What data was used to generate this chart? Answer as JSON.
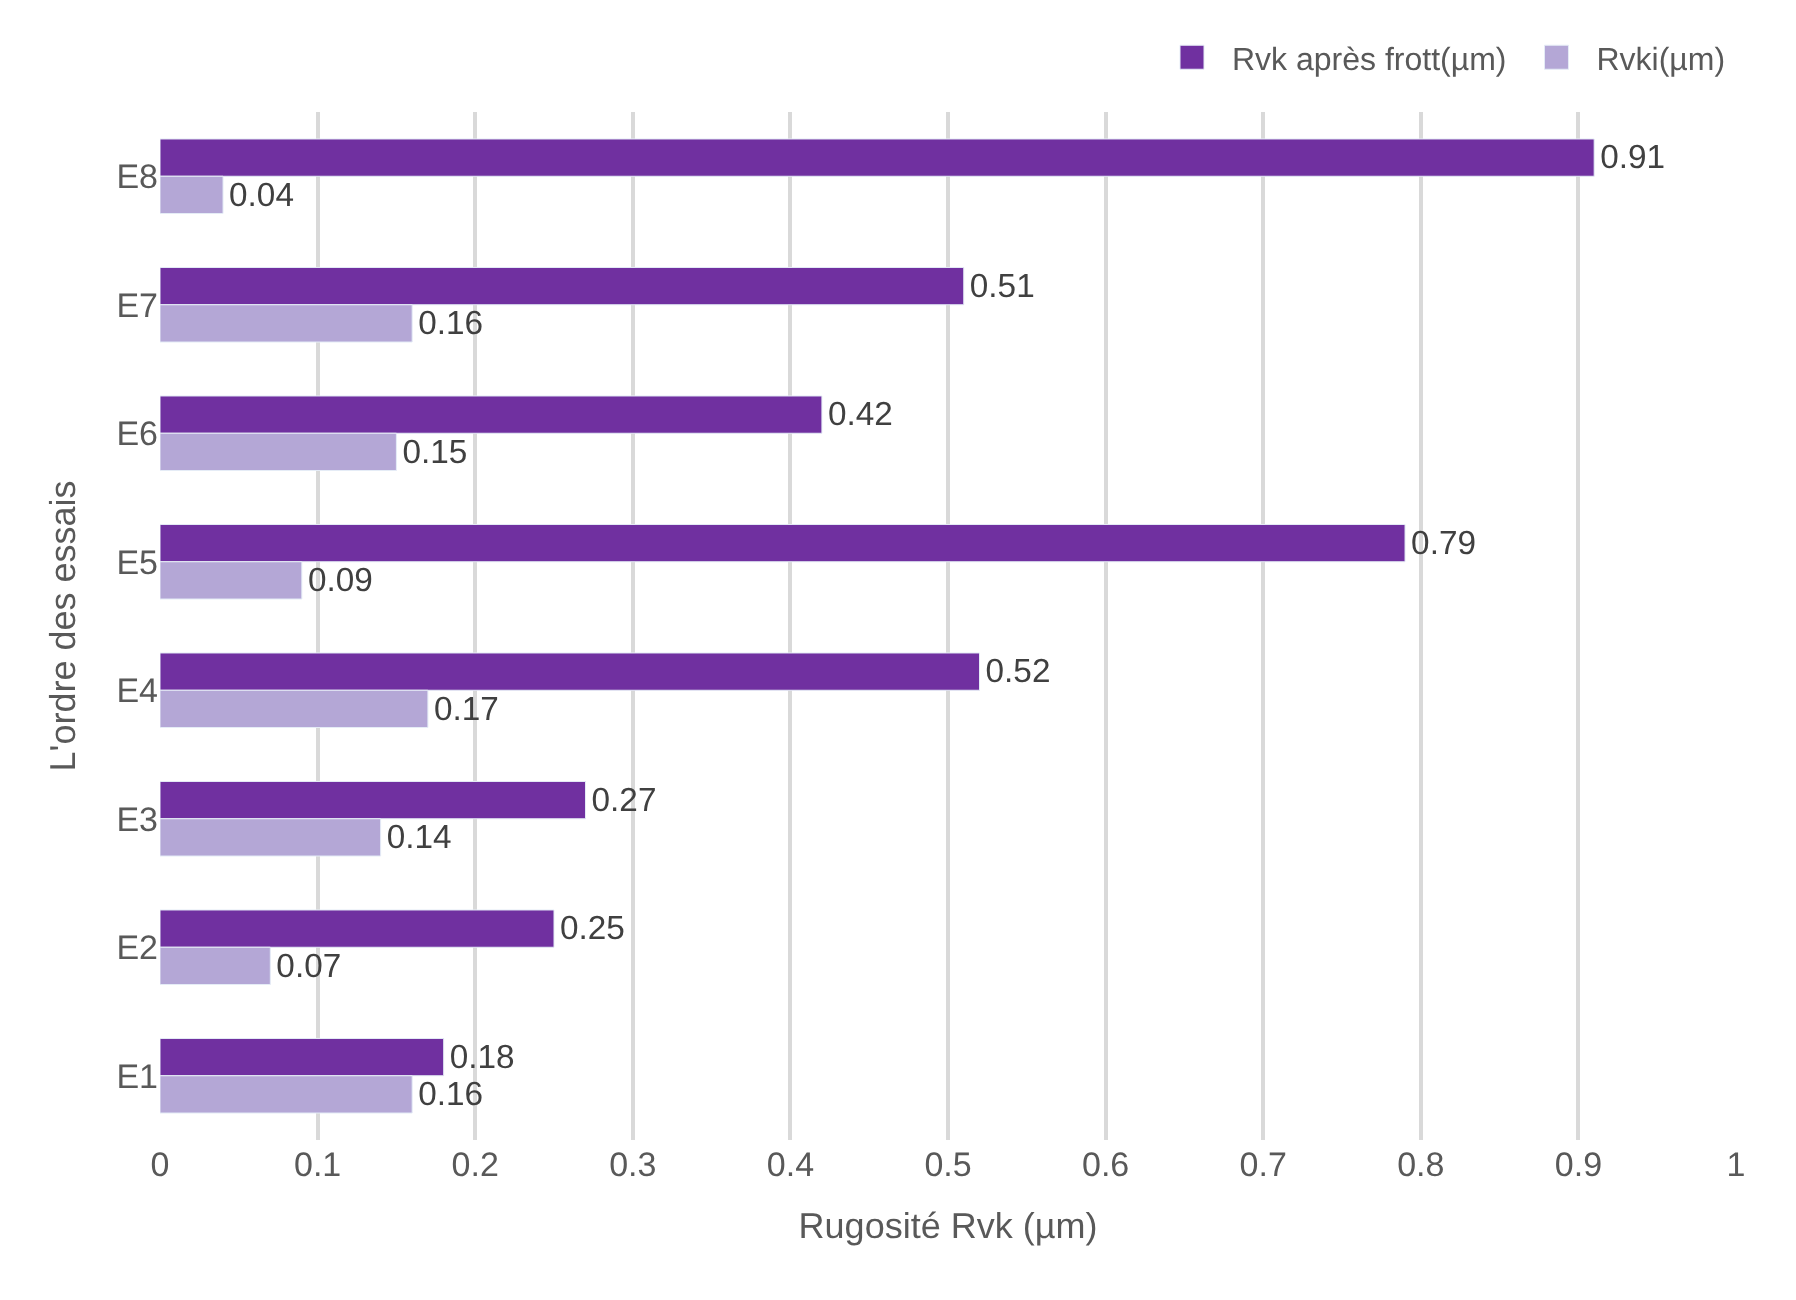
{
  "chart_data": {
    "type": "bar",
    "orientation": "horizontal",
    "xlabel": "Rugosité Rvk (µm)",
    "ylabel": "L'ordre des essais",
    "categories": [
      "E8",
      "E7",
      "E6",
      "E5",
      "E4",
      "E3",
      "E2",
      "E1"
    ],
    "series": [
      {
        "name": "Rvk après frott(µm)",
        "color": "#7030a0",
        "values": [
          0.91,
          0.51,
          0.42,
          0.79,
          0.52,
          0.27,
          0.25,
          0.18
        ]
      },
      {
        "name": "Rvki(µm)",
        "color": "#b4a7d6",
        "values": [
          0.04,
          0.16,
          0.15,
          0.09,
          0.17,
          0.14,
          0.07,
          0.16
        ]
      }
    ],
    "xlim": [
      0,
      1
    ],
    "xticks": [
      0,
      0.1,
      0.2,
      0.3,
      0.4,
      0.5,
      0.6,
      0.7,
      0.8,
      0.9,
      1
    ],
    "grid": "x",
    "legend": "top right",
    "data_labels": true
  }
}
